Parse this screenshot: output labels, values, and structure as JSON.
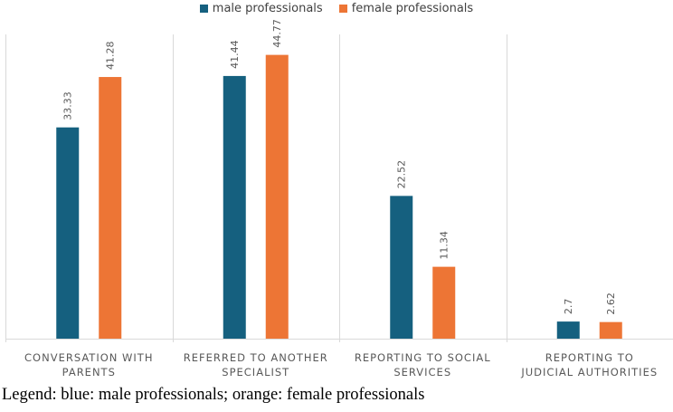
{
  "chart_data": {
    "type": "bar",
    "categories": [
      [
        "CONVERSATION WITH",
        "PARENTS"
      ],
      [
        "REFERRED TO ANOTHER",
        "SPECIALIST"
      ],
      [
        "REPORTING TO SOCIAL",
        "SERVICES"
      ],
      [
        "REPORTING TO",
        "JUDICIAL AUTHORITIES"
      ]
    ],
    "series": [
      {
        "name": "male professionals",
        "color": "#15607f",
        "values": [
          33.33,
          41.44,
          22.52,
          2.7
        ]
      },
      {
        "name": "female professionals",
        "color": "#ed7535",
        "values": [
          41.28,
          44.77,
          11.34,
          2.62
        ]
      }
    ],
    "ylim": [
      0,
      48
    ],
    "grid": false,
    "legend_position": "top-center"
  },
  "caption": "Legend: blue: male professionals; orange: female professionals"
}
